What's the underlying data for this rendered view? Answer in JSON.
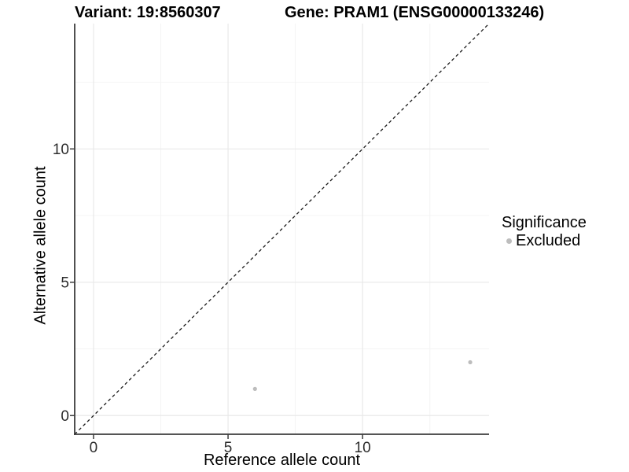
{
  "chart_data": {
    "type": "scatter",
    "title_left": "Variant: 19:8560307",
    "title_right": "Gene: PRAM1 (ENSG00000133246)",
    "xlabel": "Reference allele count",
    "ylabel": "Alternative allele count",
    "xlim": [
      -0.7,
      14.7
    ],
    "ylim": [
      -0.7,
      14.7
    ],
    "x_ticks": [
      0,
      5,
      10
    ],
    "y_ticks": [
      0,
      5,
      10
    ],
    "x_minor_ticks": [
      2.5,
      7.5,
      12.5
    ],
    "y_minor_ticks": [
      2.5,
      7.5,
      12.5
    ],
    "grid": true,
    "identity_line": {
      "slope": 1,
      "intercept": 0,
      "style": "dashed",
      "color": "#1a1a1a"
    },
    "series": [
      {
        "name": "Excluded",
        "color": "#bdbdbd",
        "points": [
          {
            "x": 6,
            "y": 1
          },
          {
            "x": 14,
            "y": 2
          }
        ]
      }
    ],
    "legend": {
      "title": "Significance",
      "position": "right",
      "entries": [
        {
          "label": "Excluded",
          "color": "#bdbdbd"
        }
      ]
    },
    "colors": {
      "grid_major": "#e9e9e9",
      "grid_minor": "#f4f4f4",
      "axis_line": "#3d3d3d",
      "tick_label": "#2e2e2e"
    }
  }
}
